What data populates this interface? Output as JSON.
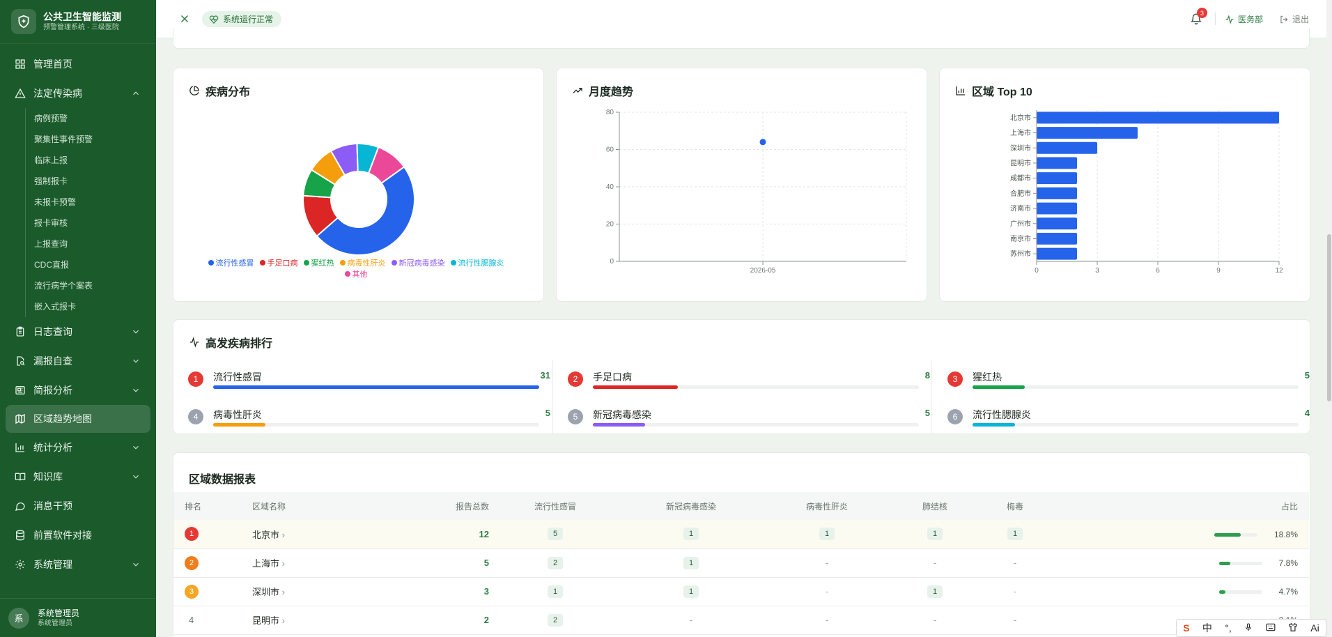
{
  "brand": {
    "title": "公共卫生智能监测",
    "subtitle": "预警管理系统 · 三级医院"
  },
  "sidebar": {
    "items": [
      {
        "label": "管理首页",
        "icon": "grid-icon"
      },
      {
        "label": "法定传染病",
        "icon": "warning-icon",
        "expanded": true
      },
      {
        "label": "日志查询",
        "icon": "clipboard-icon"
      },
      {
        "label": "漏报自查",
        "icon": "file-search-icon"
      },
      {
        "label": "简报分析",
        "icon": "newspaper-icon"
      },
      {
        "label": "区域趋势地图",
        "icon": "map-icon",
        "active": true
      },
      {
        "label": "统计分析",
        "icon": "bar-chart-icon"
      },
      {
        "label": "知识库",
        "icon": "book-icon"
      },
      {
        "label": "消息干预",
        "icon": "message-icon"
      },
      {
        "label": "前置软件对接",
        "icon": "database-icon"
      },
      {
        "label": "系统管理",
        "icon": "gear-icon"
      }
    ],
    "subitems": [
      "病例预警",
      "聚集性事件预警",
      "临床上报",
      "强制报卡",
      "未报卡预警",
      "报卡审核",
      "上报查询",
      "CDC直报",
      "流行病学个案表",
      "嵌入式报卡"
    ]
  },
  "user": {
    "avatar": "系",
    "name": "系统管理员",
    "role": "系统管理员"
  },
  "header": {
    "status": "系统运行正常",
    "notifications": "3",
    "dept": "医务部",
    "logout": "退出"
  },
  "cards": {
    "disease_title": "疾病分布",
    "trend_title": "月度趋势",
    "region_title": "区域 Top 10",
    "ranking_title": "高发疾病排行",
    "table_title": "区域数据报表"
  },
  "chart_data": [
    {
      "type": "pie",
      "labels": [
        "流行性感冒",
        "手足口病",
        "猩红热",
        "病毒性肝炎",
        "新冠病毒感染",
        "流行性腮腺炎",
        "其他"
      ],
      "values": [
        31,
        8,
        5,
        5,
        5,
        4,
        6
      ],
      "colors": [
        "#2563eb",
        "#dc2626",
        "#16a34a",
        "#f59e0b",
        "#8b5cf6",
        "#06b6d4",
        "#ec4899"
      ],
      "legend": "bottom"
    },
    {
      "type": "scatter",
      "x": [
        "2026-05"
      ],
      "y": [
        64
      ],
      "ylim": [
        0,
        80
      ],
      "yticks": [
        0,
        20,
        40,
        60,
        80
      ],
      "grid": true
    },
    {
      "type": "bar",
      "orientation": "horizontal",
      "categories": [
        "北京市",
        "上海市",
        "深圳市",
        "昆明市",
        "成都市",
        "合肥市",
        "济南市",
        "广州市",
        "南京市",
        "苏州市"
      ],
      "values": [
        12,
        5,
        3,
        2,
        2,
        2,
        2,
        2,
        2,
        2
      ],
      "xlim": [
        0,
        12
      ],
      "xticks": [
        0,
        3,
        6,
        9,
        12
      ],
      "color": "#2563eb",
      "grid": true
    }
  ],
  "ranking": [
    {
      "rank": "1",
      "name": "流行性感冒",
      "value": "31",
      "pct": 100,
      "color": "#2563eb",
      "badge": "#e53935"
    },
    {
      "rank": "2",
      "name": "手足口病",
      "value": "8",
      "pct": 26,
      "color": "#dc2626",
      "badge": "#e53935"
    },
    {
      "rank": "3",
      "name": "猩红热",
      "value": "5",
      "pct": 16,
      "color": "#16a34a",
      "badge": "#e53935"
    },
    {
      "rank": "4",
      "name": "病毒性肝炎",
      "value": "5",
      "pct": 16,
      "color": "#f59e0b",
      "badge": "#9ca3af"
    },
    {
      "rank": "5",
      "name": "新冠病毒感染",
      "value": "5",
      "pct": 16,
      "color": "#8b5cf6",
      "badge": "#9ca3af"
    },
    {
      "rank": "6",
      "name": "流行性腮腺炎",
      "value": "4",
      "pct": 13,
      "color": "#06b6d4",
      "badge": "#9ca3af"
    }
  ],
  "table": {
    "headers": [
      "排名",
      "区域名称",
      "报告总数",
      "流行性感冒",
      "新冠病毒感染",
      "病毒性肝炎",
      "肺结核",
      "梅毒",
      "占比"
    ],
    "rows": [
      {
        "rank": "1",
        "region": "北京市",
        "total": "12",
        "flu": "5",
        "covid": "1",
        "hep": "1",
        "tb": "1",
        "syph": "1",
        "share": "18.8%",
        "share_value": 18.8
      },
      {
        "rank": "2",
        "region": "上海市",
        "total": "5",
        "flu": "2",
        "covid": "1",
        "hep": "-",
        "tb": "-",
        "syph": "-",
        "share": "7.8%",
        "share_value": 7.8
      },
      {
        "rank": "3",
        "region": "深圳市",
        "total": "3",
        "flu": "1",
        "covid": "1",
        "hep": "-",
        "tb": "1",
        "syph": "-",
        "share": "4.7%",
        "share_value": 4.7
      },
      {
        "rank": "4",
        "region": "昆明市",
        "total": "2",
        "flu": "2",
        "covid": "-",
        "hep": "-",
        "tb": "-",
        "syph": "-",
        "share": "3.1%",
        "share_value": 3.1
      }
    ]
  },
  "ime": {
    "lang": "中",
    "ai": "Ai"
  }
}
